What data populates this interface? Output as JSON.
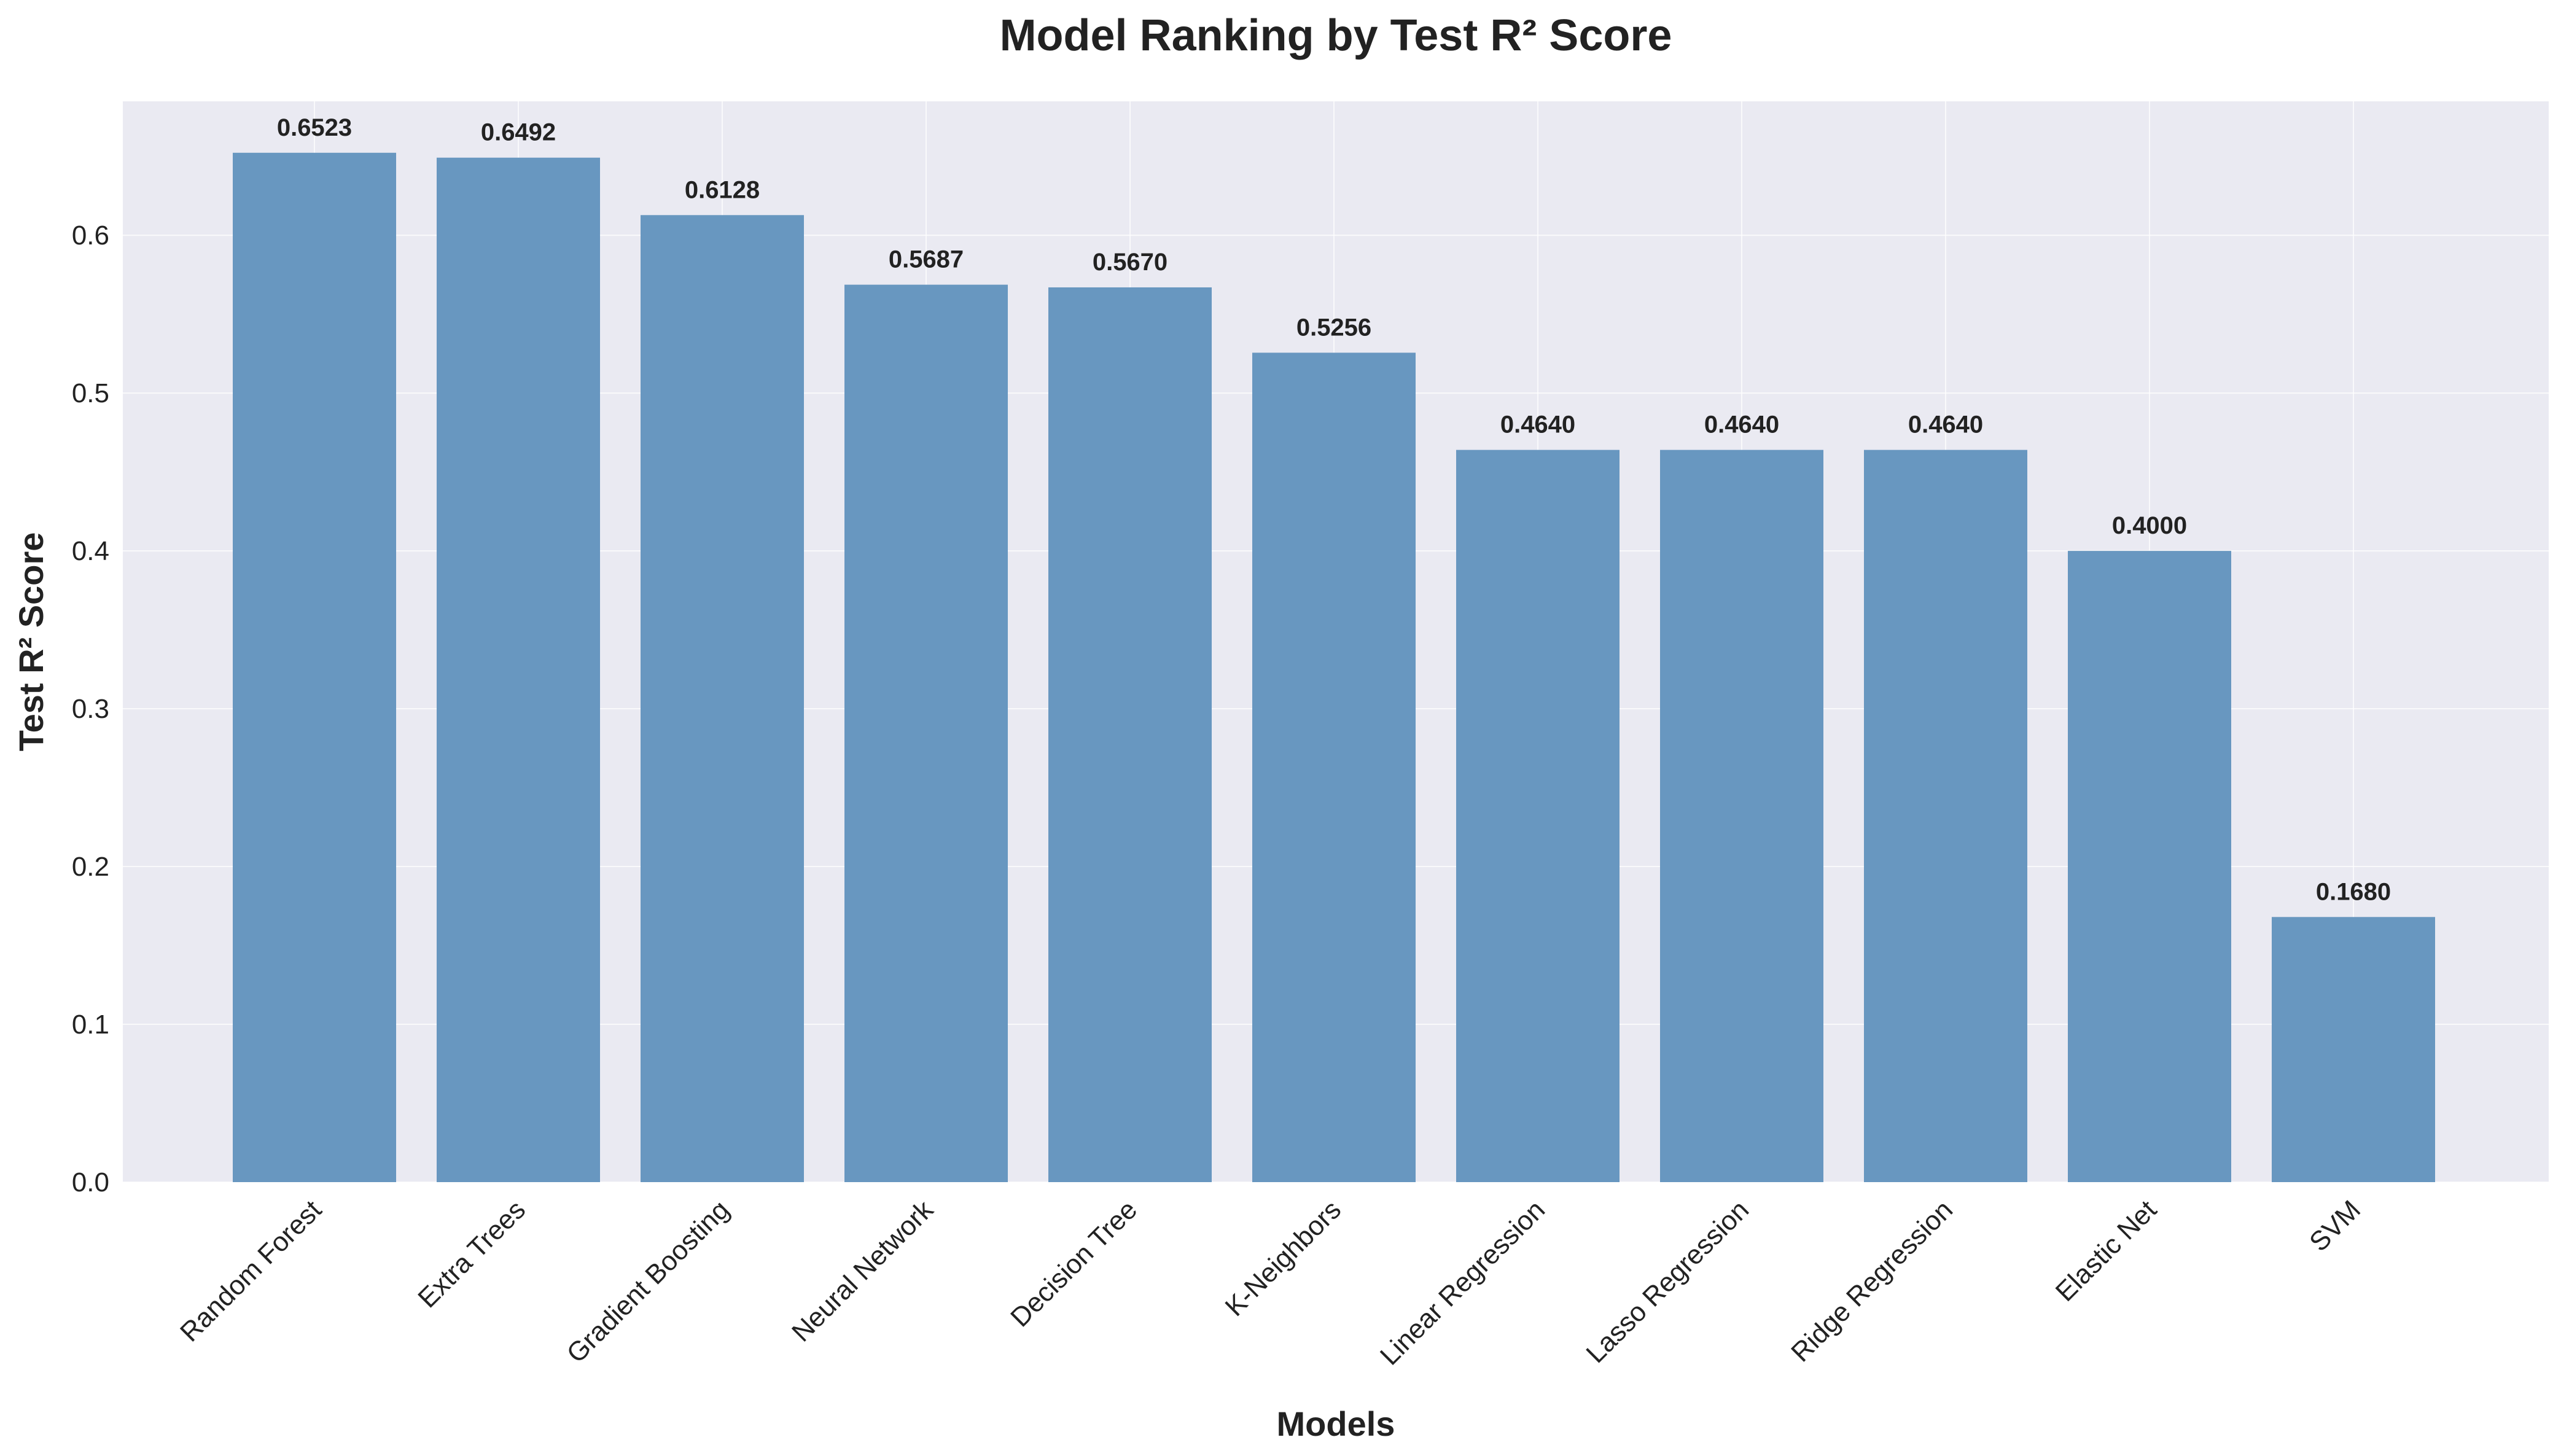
{
  "chart_data": {
    "type": "bar",
    "title": "Model Ranking by Test R² Score",
    "xlabel": "Models",
    "ylabel": "Test R² Score",
    "categories": [
      "Random Forest",
      "Extra Trees",
      "Gradient Boosting",
      "Neural Network",
      "Decision Tree",
      "K-Neighbors",
      "Linear Regression",
      "Lasso Regression",
      "Ridge Regression",
      "Elastic Net",
      "SVM"
    ],
    "values": [
      0.6523,
      0.6492,
      0.6128,
      0.5687,
      0.567,
      0.5256,
      0.464,
      0.464,
      0.464,
      0.4,
      0.168
    ],
    "value_labels": [
      "0.6523",
      "0.6492",
      "0.6128",
      "0.5687",
      "0.5670",
      "0.5256",
      "0.4640",
      "0.4640",
      "0.4640",
      "0.4000",
      "0.1680"
    ],
    "ylim": [
      0,
      0.6849
    ],
    "yticks": [
      0.0,
      0.1,
      0.2,
      0.3,
      0.4,
      0.5,
      0.6
    ],
    "ytick_labels": [
      "0.0",
      "0.1",
      "0.2",
      "0.3",
      "0.4",
      "0.5",
      "0.6"
    ],
    "grid": true,
    "legend": "none",
    "colors": {
      "bar": "#6897c0",
      "plot_background": "#eaeaf2",
      "grid": "#ffffff",
      "text": "#222222"
    }
  }
}
